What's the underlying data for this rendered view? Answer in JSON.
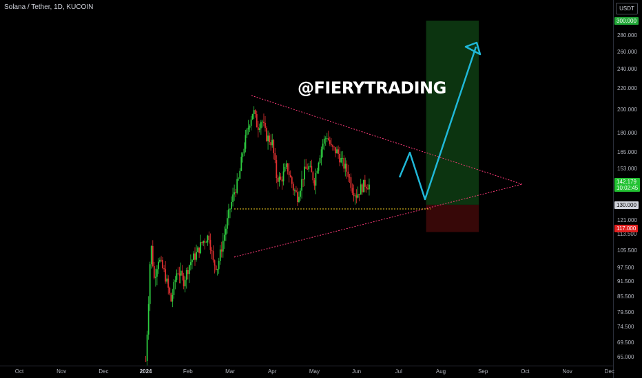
{
  "header": {
    "title": "Solana / Tether, 1D, KUCOIN",
    "currency": "USDT"
  },
  "watermark": "@FIERYTRADING",
  "colors": {
    "up": "#26a69a",
    "down": "#ef5350",
    "bull": "#2ecc40",
    "bear": "#e03030",
    "trend": "#ff3b7a",
    "support": "#f5d020",
    "arrow": "#20b8d8",
    "target_zone": "#0d3a12",
    "stop_zone": "#3a0808"
  },
  "chart_data": {
    "type": "candlestick",
    "title": "Solana / Tether, 1D, KUCOIN",
    "scale": "log",
    "ylim": [
      62,
      320
    ],
    "y_ticks": [
      "280.000",
      "260.000",
      "240.000",
      "220.000",
      "200.000",
      "180.000",
      "165.000",
      "153.000",
      "121.000",
      "113.500",
      "105.500",
      "97.500",
      "91.500",
      "85.500",
      "79.500",
      "74.500",
      "69.500",
      "65.000"
    ],
    "y_tick_values": [
      280,
      260,
      240,
      220,
      200,
      180,
      165,
      153,
      121,
      113.5,
      105.5,
      97.5,
      91.5,
      85.5,
      79.5,
      74.5,
      69.5,
      65
    ],
    "x_ticks": [
      {
        "label": "Oct",
        "bold": false
      },
      {
        "label": "Nov",
        "bold": false
      },
      {
        "label": "Dec",
        "bold": false
      },
      {
        "label": "2024",
        "bold": true
      },
      {
        "label": "Feb",
        "bold": false
      },
      {
        "label": "Mar",
        "bold": false
      },
      {
        "label": "Apr",
        "bold": false
      },
      {
        "label": "May",
        "bold": false
      },
      {
        "label": "Jun",
        "bold": false
      },
      {
        "label": "Jul",
        "bold": false
      },
      {
        "label": "Aug",
        "bold": false
      },
      {
        "label": "Sep",
        "bold": false
      },
      {
        "label": "Oct",
        "bold": false
      },
      {
        "label": "Nov",
        "bold": false
      },
      {
        "label": "Dec",
        "bold": false
      }
    ],
    "x_tick_months": [
      0,
      1,
      2,
      3,
      4,
      5,
      6,
      7,
      8,
      9,
      10,
      11,
      12,
      13,
      14
    ],
    "price_markers": {
      "target": {
        "label": "300.000",
        "value": 300
      },
      "current": {
        "label": "142.179",
        "sublabel": "10:02:45",
        "value": 142.18
      },
      "entry": {
        "label": "130.000",
        "value": 130
      },
      "stop": {
        "label": "117.000",
        "value": 117
      }
    },
    "anchors_month_price": [
      [
        3.0,
        64
      ],
      [
        3.05,
        78
      ],
      [
        3.12,
        110
      ],
      [
        3.2,
        93
      ],
      [
        3.3,
        102
      ],
      [
        3.45,
        95
      ],
      [
        3.6,
        84
      ],
      [
        3.75,
        97
      ],
      [
        3.9,
        92
      ],
      [
        4.05,
        100
      ],
      [
        4.2,
        104
      ],
      [
        4.35,
        110
      ],
      [
        4.5,
        113
      ],
      [
        4.6,
        100
      ],
      [
        4.7,
        98
      ],
      [
        4.85,
        112
      ],
      [
        5.0,
        128
      ],
      [
        5.1,
        138
      ],
      [
        5.2,
        145
      ],
      [
        5.3,
        165
      ],
      [
        5.45,
        188
      ],
      [
        5.55,
        200
      ],
      [
        5.65,
        185
      ],
      [
        5.75,
        192
      ],
      [
        5.85,
        178
      ],
      [
        6.0,
        172
      ],
      [
        6.1,
        148
      ],
      [
        6.2,
        145
      ],
      [
        6.35,
        155
      ],
      [
        6.5,
        140
      ],
      [
        6.6,
        135
      ],
      [
        6.75,
        150
      ],
      [
        6.85,
        155
      ],
      [
        7.0,
        145
      ],
      [
        7.1,
        160
      ],
      [
        7.2,
        172
      ],
      [
        7.3,
        178
      ],
      [
        7.4,
        168
      ],
      [
        7.55,
        165
      ],
      [
        7.65,
        158
      ],
      [
        7.8,
        150
      ],
      [
        7.9,
        140
      ],
      [
        8.0,
        136
      ],
      [
        8.1,
        140
      ],
      [
        8.2,
        143
      ],
      [
        8.3,
        142
      ]
    ]
  }
}
